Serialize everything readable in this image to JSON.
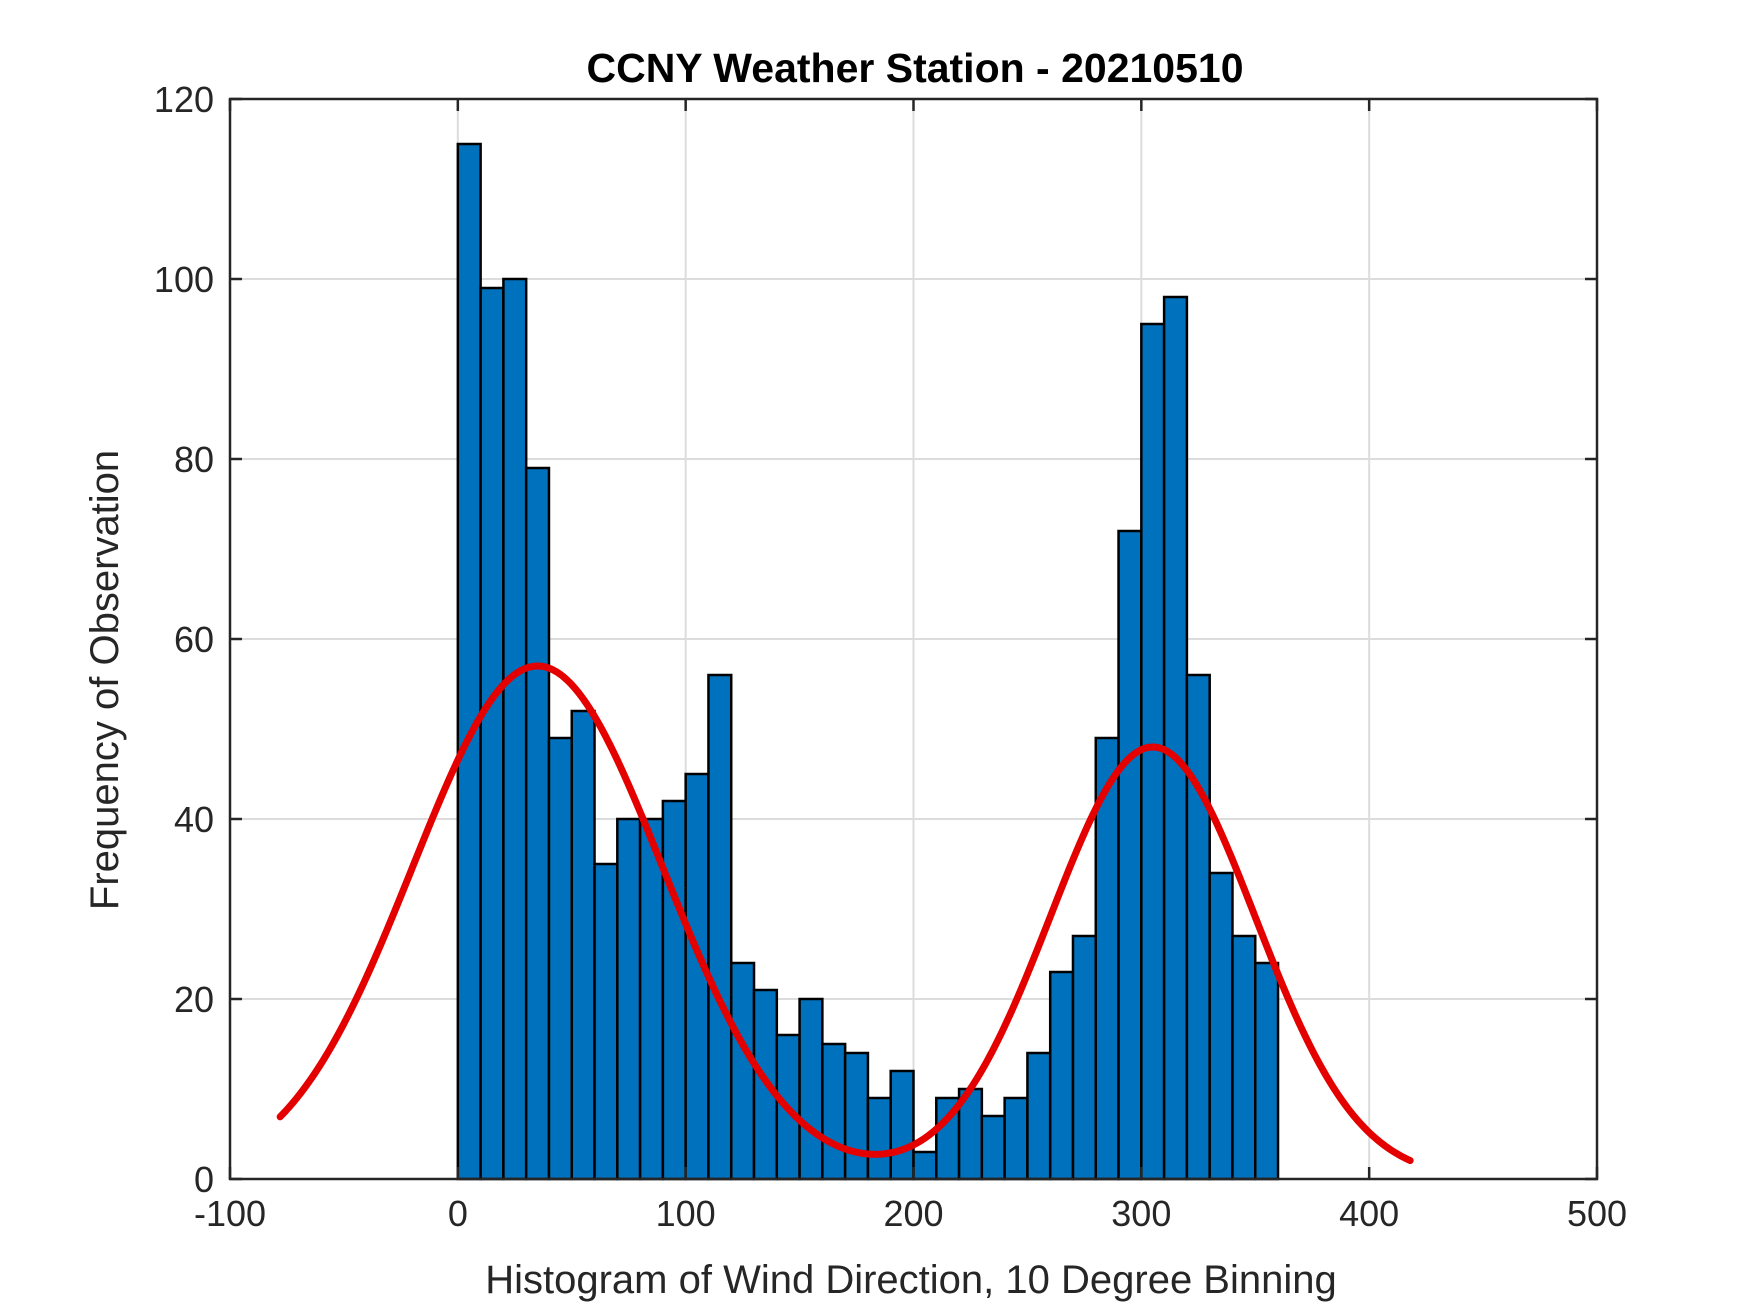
{
  "chart_data": {
    "type": "bar",
    "title": "CCNY Weather Station - 20210510",
    "xlabel": "Histogram of Wind Direction, 10 Degree Binning",
    "ylabel": "Frequency of Observation",
    "xlim": [
      -100,
      500
    ],
    "ylim": [
      0,
      120
    ],
    "xticks": [
      -100,
      0,
      100,
      200,
      300,
      400,
      500
    ],
    "yticks": [
      0,
      20,
      40,
      60,
      80,
      100,
      120
    ],
    "grid": true,
    "bin_width": 10,
    "bin_edges_start": 0,
    "bins": [
      {
        "start": 0,
        "end": 10,
        "count": 115
      },
      {
        "start": 10,
        "end": 20,
        "count": 99
      },
      {
        "start": 20,
        "end": 30,
        "count": 100
      },
      {
        "start": 30,
        "end": 40,
        "count": 79
      },
      {
        "start": 40,
        "end": 50,
        "count": 49
      },
      {
        "start": 50,
        "end": 60,
        "count": 52
      },
      {
        "start": 60,
        "end": 70,
        "count": 35
      },
      {
        "start": 70,
        "end": 80,
        "count": 40
      },
      {
        "start": 80,
        "end": 90,
        "count": 40
      },
      {
        "start": 90,
        "end": 100,
        "count": 42
      },
      {
        "start": 100,
        "end": 110,
        "count": 45
      },
      {
        "start": 110,
        "end": 120,
        "count": 56
      },
      {
        "start": 120,
        "end": 130,
        "count": 24
      },
      {
        "start": 130,
        "end": 140,
        "count": 21
      },
      {
        "start": 140,
        "end": 150,
        "count": 16
      },
      {
        "start": 150,
        "end": 160,
        "count": 20
      },
      {
        "start": 160,
        "end": 170,
        "count": 15
      },
      {
        "start": 170,
        "end": 180,
        "count": 14
      },
      {
        "start": 180,
        "end": 190,
        "count": 9
      },
      {
        "start": 190,
        "end": 200,
        "count": 12
      },
      {
        "start": 200,
        "end": 210,
        "count": 3
      },
      {
        "start": 210,
        "end": 220,
        "count": 9
      },
      {
        "start": 220,
        "end": 230,
        "count": 10
      },
      {
        "start": 230,
        "end": 240,
        "count": 7
      },
      {
        "start": 240,
        "end": 250,
        "count": 9
      },
      {
        "start": 250,
        "end": 260,
        "count": 14
      },
      {
        "start": 260,
        "end": 270,
        "count": 23
      },
      {
        "start": 270,
        "end": 280,
        "count": 27
      },
      {
        "start": 280,
        "end": 290,
        "count": 49
      },
      {
        "start": 290,
        "end": 300,
        "count": 72
      },
      {
        "start": 300,
        "end": 310,
        "count": 95
      },
      {
        "start": 310,
        "end": 320,
        "count": 98
      },
      {
        "start": 320,
        "end": 330,
        "count": 56
      },
      {
        "start": 330,
        "end": 340,
        "count": 34
      },
      {
        "start": 340,
        "end": 350,
        "count": 27
      },
      {
        "start": 350,
        "end": 360,
        "count": 24
      }
    ],
    "fit_curve": {
      "type": "line",
      "description": "two-component Gaussian mixture fit",
      "x_range": [
        -78,
        418
      ],
      "components": [
        {
          "amplitude": 57,
          "mean": 35,
          "sigma": 55
        },
        {
          "amplitude": 48,
          "mean": 305,
          "sigma": 45
        }
      ]
    },
    "colors": {
      "bar_fill": "#0072BD",
      "bar_edge": "#000000",
      "fit_line": "#E50000",
      "grid": "#DCDCDC",
      "axis": "#262626"
    }
  }
}
